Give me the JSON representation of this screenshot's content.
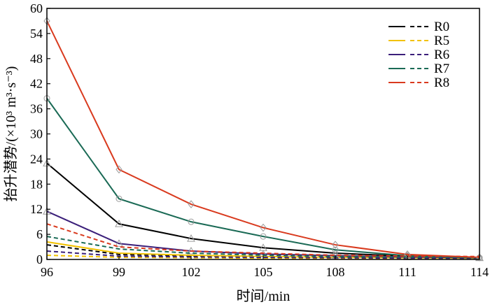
{
  "chart_data": {
    "type": "line",
    "xlabel": "时间/min",
    "ylabel": "抬升潜势/(×10³ m³·s⁻³)",
    "x": [
      96,
      99,
      102,
      105,
      108,
      111,
      114
    ],
    "xlim": [
      96,
      114
    ],
    "ylim": [
      0,
      60
    ],
    "yticks": [
      0,
      6,
      12,
      18,
      24,
      30,
      36,
      42,
      48,
      54,
      60
    ],
    "grid": false,
    "legend_position": "top-right",
    "series": [
      {
        "name": "R0",
        "color": "#000000",
        "style": "solid",
        "marker": "triangle",
        "values": [
          23.0,
          8.5,
          5.0,
          2.8,
          1.5,
          0.8,
          0.4
        ]
      },
      {
        "name": "R0",
        "color": "#000000",
        "style": "dashed",
        "marker": "none",
        "values": [
          3.5,
          1.2,
          0.9,
          0.6,
          0.5,
          0.4,
          0.3
        ]
      },
      {
        "name": "R5",
        "color": "#f2c200",
        "style": "solid",
        "marker": "none",
        "values": [
          4.2,
          1.5,
          1.0,
          0.7,
          0.5,
          0.4,
          0.3
        ]
      },
      {
        "name": "R5",
        "color": "#f2c200",
        "style": "dashed",
        "marker": "none",
        "values": [
          1.0,
          0.5,
          0.4,
          0.3,
          0.2,
          0.2,
          0.2
        ]
      },
      {
        "name": "R6",
        "color": "#3b1f7a",
        "style": "solid",
        "marker": "triangle",
        "values": [
          11.5,
          3.8,
          2.0,
          1.3,
          0.9,
          0.6,
          0.4
        ]
      },
      {
        "name": "R6",
        "color": "#3b1f7a",
        "style": "dashed",
        "marker": "none",
        "values": [
          2.0,
          0.8,
          0.6,
          0.5,
          0.4,
          0.3,
          0.3
        ]
      },
      {
        "name": "R7",
        "color": "#1a6a55",
        "style": "solid",
        "marker": "circle",
        "values": [
          38.5,
          14.5,
          9.0,
          5.5,
          2.3,
          0.9,
          0.4
        ]
      },
      {
        "name": "R7",
        "color": "#1a6a55",
        "style": "dashed",
        "marker": "none",
        "values": [
          5.5,
          2.5,
          1.5,
          1.0,
          0.7,
          0.6,
          0.5
        ]
      },
      {
        "name": "R8",
        "color": "#d93a1e",
        "style": "solid",
        "marker": "diamond",
        "values": [
          57.0,
          21.5,
          13.2,
          7.6,
          3.5,
          1.2,
          0.5
        ]
      },
      {
        "name": "R8",
        "color": "#d93a1e",
        "style": "dashed",
        "marker": "none",
        "values": [
          8.5,
          3.0,
          2.0,
          1.5,
          1.0,
          0.8,
          0.7
        ]
      }
    ],
    "legend": [
      {
        "label": "R0",
        "color": "#000000"
      },
      {
        "label": "R5",
        "color": "#f2c200"
      },
      {
        "label": "R6",
        "color": "#3b1f7a"
      },
      {
        "label": "R7",
        "color": "#1a6a55"
      },
      {
        "label": "R8",
        "color": "#d93a1e"
      }
    ]
  }
}
